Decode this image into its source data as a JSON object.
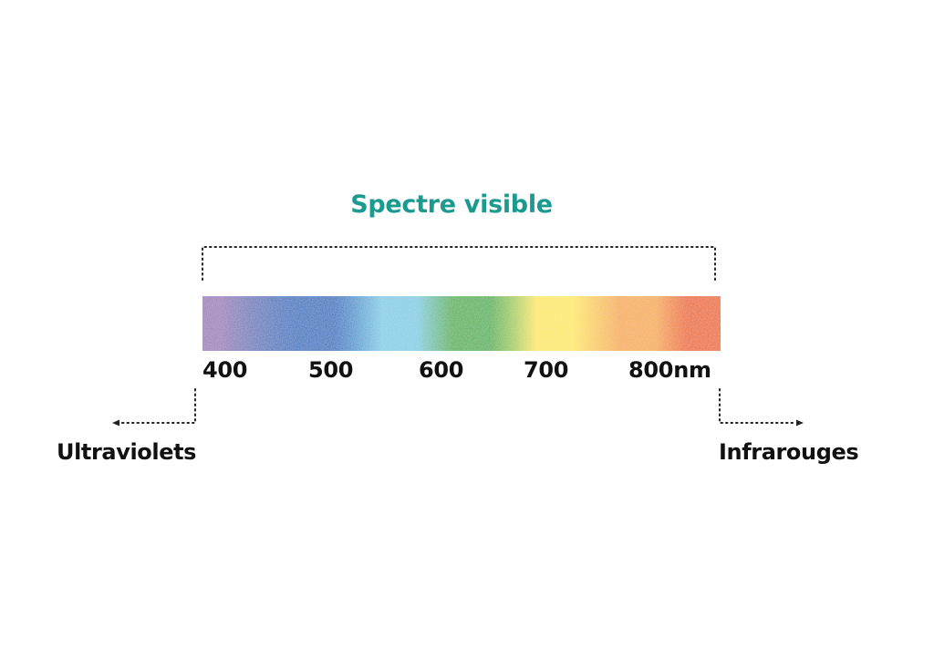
{
  "title": "Spectre visible",
  "scale": {
    "ticks": [
      {
        "value": 400,
        "label": "400"
      },
      {
        "value": 500,
        "label": "500"
      },
      {
        "value": 600,
        "label": "600"
      },
      {
        "value": 700,
        "label": "700"
      },
      {
        "value": 800,
        "label": "800nm"
      }
    ]
  },
  "regions": {
    "left": "Ultraviolets",
    "right": "Infrarouges"
  },
  "spectrum": {
    "bands": [
      {
        "name": "violet",
        "color": "#9b7ab8"
      },
      {
        "name": "blue",
        "color": "#1f6fc0"
      },
      {
        "name": "light-blue",
        "color": "#7fcbe5"
      },
      {
        "name": "green",
        "color": "#4db04d"
      },
      {
        "name": "yellow",
        "color": "#fde85a"
      },
      {
        "name": "light-orange",
        "color": "#f6aa48"
      },
      {
        "name": "orange",
        "color": "#ec650f"
      }
    ]
  },
  "colors": {
    "title": "#1b9a90",
    "text": "#111111",
    "dots": "#222222"
  }
}
